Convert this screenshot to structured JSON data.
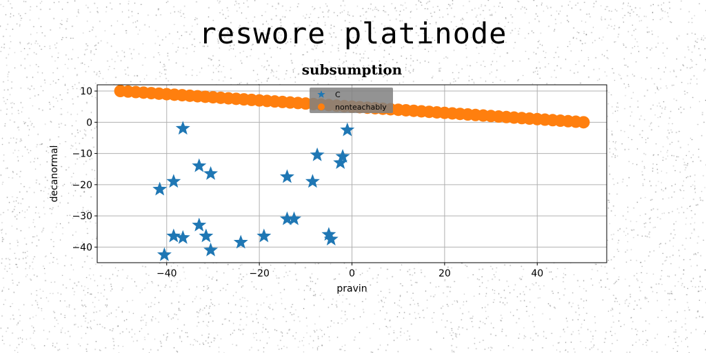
{
  "figure": {
    "suptitle": "reswore platinode"
  },
  "chart_data": {
    "type": "scatter",
    "title": "subsumption",
    "xlabel": "pravin",
    "ylabel": "decanormal",
    "xlim": [
      -55,
      55
    ],
    "ylim": [
      -45,
      12
    ],
    "xticks": [
      -40,
      -20,
      0,
      20,
      40
    ],
    "yticks": [
      10,
      0,
      -10,
      -20,
      -30,
      -40
    ],
    "grid": true,
    "legend_position": "top-center",
    "series": [
      {
        "name": "C",
        "marker": "star",
        "color": "#1f77b4",
        "points": [
          [
            -36.5,
            -2
          ],
          [
            -1,
            -2.5
          ],
          [
            -7.5,
            -10.5
          ],
          [
            -2,
            -11
          ],
          [
            -2.5,
            -13
          ],
          [
            -33,
            -14
          ],
          [
            -30.5,
            -16.5
          ],
          [
            -14,
            -17.5
          ],
          [
            -38.5,
            -19
          ],
          [
            -8.5,
            -19
          ],
          [
            -41.5,
            -21.5
          ],
          [
            -14,
            -31
          ],
          [
            -12.5,
            -31
          ],
          [
            -33,
            -33
          ],
          [
            -31.5,
            -36.5
          ],
          [
            -38.5,
            -36.5
          ],
          [
            -36.5,
            -37
          ],
          [
            -19,
            -36.5
          ],
          [
            -5,
            -36
          ],
          [
            -4.5,
            -37.5
          ],
          [
            -24,
            -38.5
          ],
          [
            -30.5,
            -41
          ],
          [
            -40.5,
            -42.5
          ]
        ]
      },
      {
        "name": "nonteachably",
        "marker": "circle",
        "color": "#ff7f0e",
        "line": {
          "x_start": -50,
          "y_start": 10,
          "x_end": 50,
          "y_end": 0,
          "count": 61
        }
      }
    ]
  }
}
